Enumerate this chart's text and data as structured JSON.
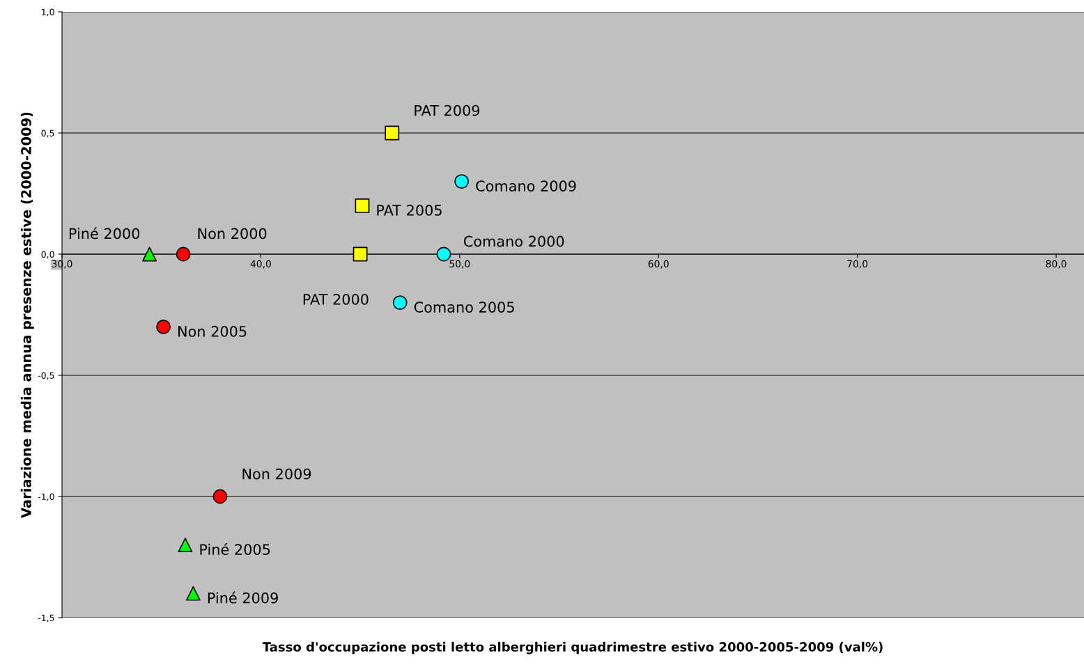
{
  "chart_data": {
    "type": "scatter",
    "xlabel": "Tasso d'occupazione posti letto alberghieri quadrimestre estivo 2000-2005-2009 (val%)",
    "ylabel": "Variazione media annua presenze estive (2000-2009)",
    "series": [
      {
        "color": "#ff0000",
        "marker": "circle",
        "x": [
          36.1,
          35.1,
          37.95
        ],
        "values": [
          0.0,
          -0.3,
          -1.0
        ]
      },
      {
        "color": "#00ff00",
        "marker": "triangle",
        "x": [
          34.4,
          36.2,
          36.6
        ],
        "values": [
          0.0,
          -1.2,
          -1.4
        ]
      },
      {
        "color": "#ffff00",
        "marker": "square",
        "x": [
          45.0,
          45.1,
          46.6
        ],
        "values": [
          0.0,
          0.2,
          0.5
        ]
      },
      {
        "color": "#00ffff",
        "marker": "circle",
        "x": [
          49.2,
          47.0,
          50.1
        ],
        "values": [
          0.0,
          -0.2,
          0.3
        ]
      }
    ],
    "annotations": [
      {
        "text": "Non 2000",
        "x": 36.1,
        "y": 0.0
      },
      {
        "text": "Non 2005",
        "x": 35.1,
        "y": -0.3
      },
      {
        "text": "Non 2009",
        "x": 37.95,
        "y": -1.0
      },
      {
        "text": "Piné 2000",
        "x": 34.4,
        "y": 0.0
      },
      {
        "text": "Piné 2005",
        "x": 36.2,
        "y": -1.2
      },
      {
        "text": "Piné 2009",
        "x": 36.6,
        "y": -1.4
      },
      {
        "text": "PAT 2000",
        "x": 45.0,
        "y": 0.0
      },
      {
        "text": "PAT 2005",
        "x": 45.1,
        "y": 0.2
      },
      {
        "text": "PAT 2009",
        "x": 46.6,
        "y": 0.5
      },
      {
        "text": "Comano 2000",
        "x": 49.2,
        "y": 0.0
      },
      {
        "text": "Comano 2005",
        "x": 47.0,
        "y": -0.2
      },
      {
        "text": "Comano 2009",
        "x": 50.1,
        "y": 0.3
      }
    ],
    "xlim": [
      30,
      81.4
    ],
    "xticks": [
      {
        "value": 30,
        "label": "30,0"
      },
      {
        "value": 40,
        "label": "40,0"
      },
      {
        "value": 50,
        "label": "50,0"
      },
      {
        "value": 60,
        "label": "60,0"
      },
      {
        "value": 70,
        "label": "70,0"
      },
      {
        "value": 80,
        "label": "80,0"
      }
    ],
    "ylim": [
      -1.5,
      1.0
    ],
    "yticks": [
      {
        "value": -1.5,
        "label": "-1,5"
      },
      {
        "value": -1.0,
        "label": "-1,0"
      },
      {
        "value": -0.5,
        "label": "-0,5"
      },
      {
        "value": 0.0,
        "label": "0,0"
      },
      {
        "value": 0.5,
        "label": "0,5"
      },
      {
        "value": 1.0,
        "label": "1,0"
      }
    ],
    "grid": "y",
    "legend": false
  }
}
